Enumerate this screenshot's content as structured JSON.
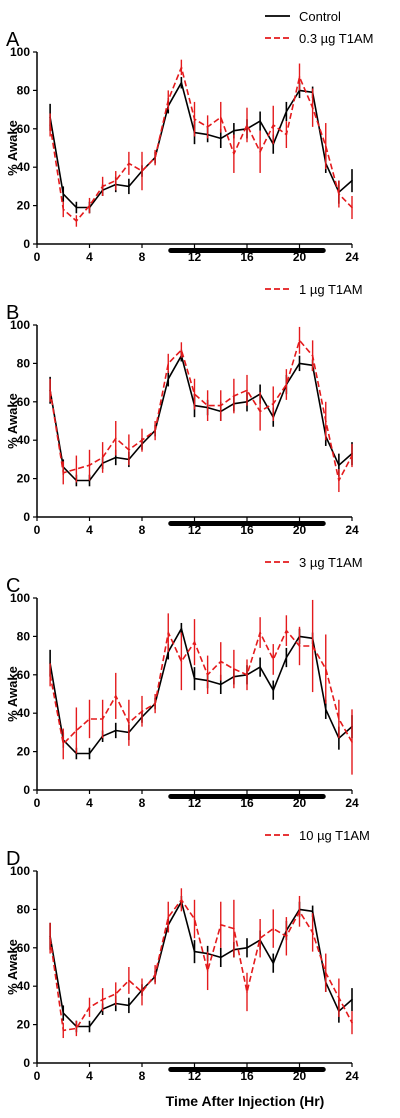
{
  "figure": {
    "xlabel": "Time After Injection (Hr)"
  },
  "colors": {
    "control": "#000000",
    "treatment": "#e41a1c",
    "axis": "#000000"
  },
  "chart_data": [
    {
      "panel": "A",
      "type": "line",
      "ylabel": "% Awake",
      "xlim": [
        0,
        24
      ],
      "ylim": [
        0,
        100
      ],
      "xticks": [
        0,
        4,
        8,
        12,
        16,
        20,
        24
      ],
      "yticks": [
        0,
        20,
        40,
        60,
        80,
        100
      ],
      "dark_period": [
        10,
        22
      ],
      "legend_placement": "top-right",
      "x": [
        1,
        2,
        3,
        4,
        5,
        6,
        7,
        8,
        9,
        10,
        11,
        12,
        13,
        14,
        15,
        16,
        17,
        18,
        19,
        20,
        21,
        22,
        23,
        24
      ],
      "series": [
        {
          "name": "Control",
          "style": "solid",
          "color": "#000000",
          "values": [
            66,
            26,
            19,
            19,
            28,
            31,
            30,
            38,
            45,
            72,
            84,
            58,
            57,
            55,
            59,
            60,
            64,
            52,
            69,
            80,
            79,
            42,
            27,
            33
          ],
          "errors": [
            7,
            4,
            3,
            3,
            3,
            4,
            4,
            3,
            3,
            4,
            3,
            6,
            4,
            5,
            4,
            5,
            5,
            5,
            5,
            4,
            3,
            5,
            6,
            6
          ]
        },
        {
          "name": "0.3 µg T1AM",
          "style": "dashed",
          "color": "#e41a1c",
          "values": [
            62,
            18,
            12,
            20,
            30,
            33,
            42,
            38,
            45,
            75,
            92,
            65,
            61,
            66,
            47,
            62,
            48,
            62,
            57,
            87,
            71,
            51,
            26,
            19
          ],
          "errors": [
            6,
            4,
            3,
            4,
            5,
            5,
            6,
            10,
            4,
            5,
            4,
            9,
            6,
            8,
            10,
            9,
            11,
            10,
            7,
            7,
            10,
            12,
            7,
            6
          ]
        }
      ]
    },
    {
      "panel": "B",
      "type": "line",
      "ylabel": "% Awake",
      "xlim": [
        0,
        24
      ],
      "ylim": [
        0,
        100
      ],
      "xticks": [
        0,
        4,
        8,
        12,
        16,
        20,
        24
      ],
      "yticks": [
        0,
        20,
        40,
        60,
        80,
        100
      ],
      "dark_period": [
        10,
        22
      ],
      "legend_placement": "top-right",
      "x": [
        1,
        2,
        3,
        4,
        5,
        6,
        7,
        8,
        9,
        10,
        11,
        12,
        13,
        14,
        15,
        16,
        17,
        18,
        19,
        20,
        21,
        22,
        23,
        24
      ],
      "series": [
        {
          "name": "Control",
          "style": "solid",
          "color": "#000000",
          "values": [
            66,
            26,
            19,
            19,
            28,
            31,
            30,
            38,
            45,
            72,
            84,
            58,
            57,
            55,
            59,
            60,
            64,
            52,
            69,
            80,
            79,
            42,
            27,
            33
          ],
          "errors": [
            7,
            4,
            3,
            3,
            3,
            4,
            4,
            3,
            3,
            4,
            3,
            6,
            4,
            5,
            4,
            5,
            5,
            5,
            5,
            4,
            3,
            5,
            6,
            6
          ]
        },
        {
          "name": "1 µg T1AM",
          "style": "dashed",
          "color": "#e41a1c",
          "values": [
            66,
            23,
            25,
            27,
            31,
            41,
            35,
            40,
            45,
            80,
            87,
            64,
            58,
            58,
            63,
            66,
            55,
            59,
            69,
            92,
            84,
            50,
            19,
            32
          ],
          "errors": [
            6,
            6,
            7,
            8,
            8,
            9,
            8,
            6,
            5,
            5,
            4,
            8,
            8,
            8,
            9,
            8,
            10,
            9,
            8,
            7,
            8,
            10,
            6,
            6
          ]
        }
      ]
    },
    {
      "panel": "C",
      "type": "line",
      "ylabel": "% Awake",
      "xlim": [
        0,
        24
      ],
      "ylim": [
        0,
        100
      ],
      "xticks": [
        0,
        4,
        8,
        12,
        16,
        20,
        24
      ],
      "yticks": [
        0,
        20,
        40,
        60,
        80,
        100
      ],
      "dark_period": [
        10,
        22
      ],
      "legend_placement": "top-right",
      "x": [
        1,
        2,
        3,
        4,
        5,
        6,
        7,
        8,
        9,
        10,
        11,
        12,
        13,
        14,
        15,
        16,
        17,
        18,
        19,
        20,
        21,
        22,
        23,
        24
      ],
      "series": [
        {
          "name": "Control",
          "style": "solid",
          "color": "#000000",
          "values": [
            66,
            26,
            19,
            19,
            28,
            31,
            30,
            38,
            45,
            72,
            84,
            58,
            57,
            55,
            59,
            60,
            64,
            52,
            69,
            80,
            79,
            42,
            27,
            33
          ],
          "errors": [
            7,
            4,
            3,
            3,
            3,
            4,
            4,
            3,
            3,
            4,
            3,
            6,
            4,
            5,
            4,
            5,
            5,
            5,
            5,
            4,
            3,
            5,
            6,
            6
          ]
        },
        {
          "name": "3 µg T1AM",
          "style": "dashed",
          "color": "#e41a1c",
          "values": [
            60,
            24,
            31,
            37,
            37,
            49,
            35,
            41,
            45,
            82,
            67,
            77,
            60,
            67,
            63,
            60,
            82,
            68,
            83,
            75,
            75,
            63,
            37,
            25
          ],
          "errors": [
            6,
            8,
            12,
            10,
            10,
            12,
            12,
            8,
            5,
            10,
            15,
            12,
            10,
            10,
            10,
            8,
            8,
            8,
            8,
            10,
            24,
            18,
            10,
            17
          ]
        }
      ]
    },
    {
      "panel": "D",
      "type": "line",
      "ylabel": "% Awake",
      "xlim": [
        0,
        24
      ],
      "ylim": [
        0,
        100
      ],
      "xticks": [
        0,
        4,
        8,
        12,
        16,
        20,
        24
      ],
      "yticks": [
        0,
        20,
        40,
        60,
        80,
        100
      ],
      "dark_period": [
        10,
        22
      ],
      "legend_placement": "top-right",
      "x": [
        1,
        2,
        3,
        4,
        5,
        6,
        7,
        8,
        9,
        10,
        11,
        12,
        13,
        14,
        15,
        16,
        17,
        18,
        19,
        20,
        21,
        22,
        23,
        24
      ],
      "series": [
        {
          "name": "Control",
          "style": "solid",
          "color": "#000000",
          "values": [
            66,
            26,
            19,
            19,
            28,
            31,
            30,
            38,
            45,
            72,
            84,
            58,
            57,
            55,
            59,
            60,
            64,
            52,
            69,
            80,
            79,
            42,
            27,
            33
          ],
          "errors": [
            7,
            4,
            3,
            3,
            3,
            4,
            4,
            3,
            3,
            4,
            3,
            6,
            4,
            5,
            4,
            5,
            5,
            5,
            5,
            4,
            3,
            5,
            6,
            6
          ]
        },
        {
          "name": "10 µg T1AM",
          "style": "dashed",
          "color": "#e41a1c",
          "values": [
            65,
            17,
            18,
            29,
            33,
            36,
            43,
            37,
            46,
            76,
            85,
            75,
            48,
            72,
            70,
            37,
            65,
            70,
            66,
            79,
            68,
            47,
            34,
            21
          ],
          "errors": [
            8,
            4,
            4,
            5,
            6,
            6,
            7,
            7,
            5,
            8,
            6,
            10,
            10,
            12,
            15,
            10,
            10,
            10,
            10,
            8,
            10,
            10,
            10,
            6
          ]
        }
      ]
    }
  ]
}
